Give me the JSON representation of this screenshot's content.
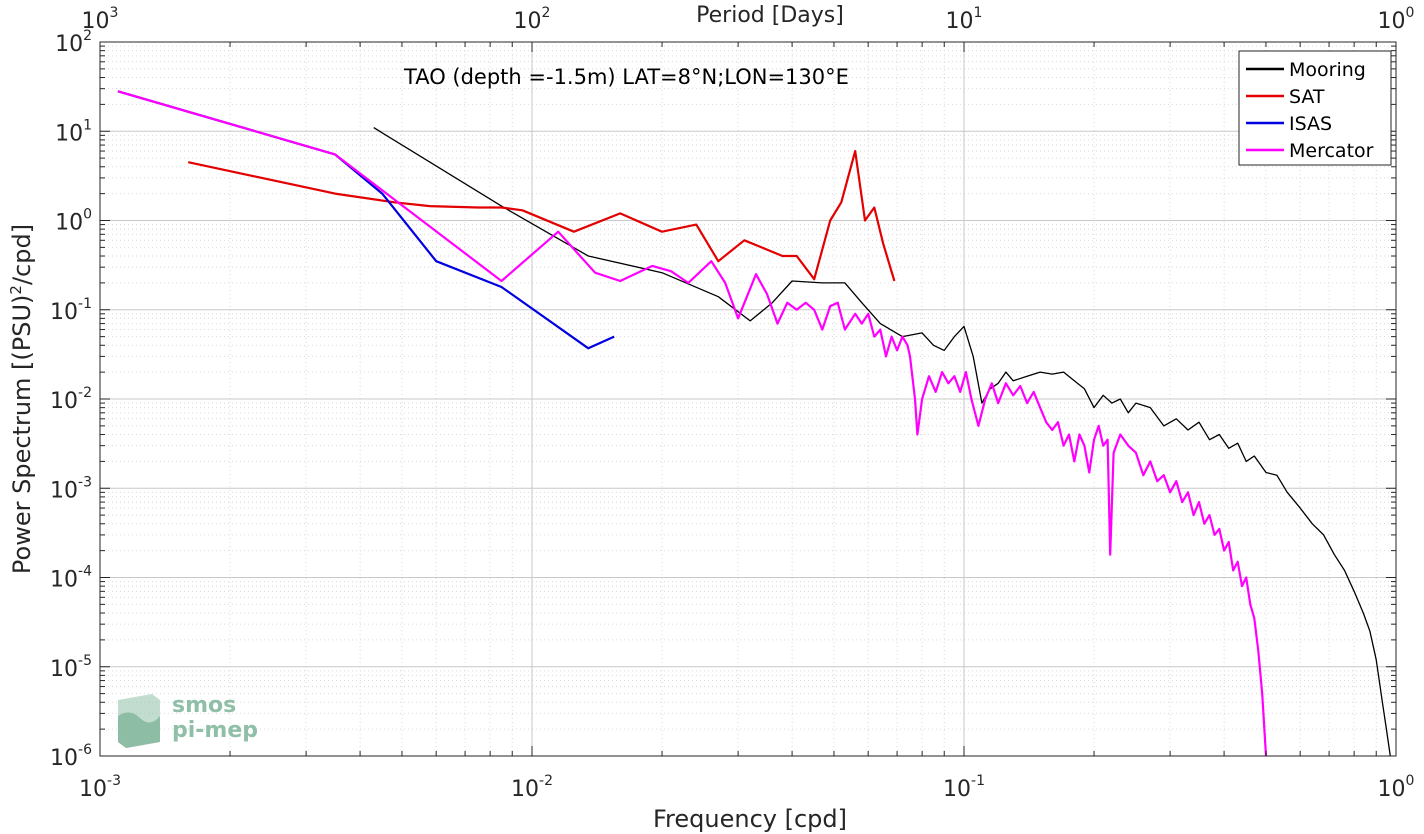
{
  "chart_data": {
    "type": "line",
    "title": "TAO (depth =-1.5m) LAT=8°N;LON=130°E",
    "xlabel": "Frequency [cpd]",
    "ylabel": "Power Spectrum [(PSU)",
    "ylabel_sup": "2",
    "ylabel_end": "/cpd]",
    "x2label": "Period [Days]",
    "xscale": "log",
    "yscale": "log",
    "xlim": [
      0.001,
      1
    ],
    "ylim": [
      1e-06,
      100
    ],
    "x2lim": [
      1000,
      1
    ],
    "grid": true,
    "minor_grid": true,
    "legend_position": "top-right",
    "x_ticks": [
      {
        "base": "10",
        "exp": "-3",
        "v": 0.001
      },
      {
        "base": "10",
        "exp": "-2",
        "v": 0.01
      },
      {
        "base": "10",
        "exp": "-1",
        "v": 0.1
      },
      {
        "base": "10",
        "exp": "0",
        "v": 1
      }
    ],
    "x2_ticks": [
      {
        "base": "10",
        "exp": "3",
        "v": 1000
      },
      {
        "base": "10",
        "exp": "2",
        "v": 100
      },
      {
        "base": "10",
        "exp": "1",
        "v": 10
      },
      {
        "base": "10",
        "exp": "0",
        "v": 1
      }
    ],
    "y_ticks": [
      {
        "base": "10",
        "exp": "2",
        "v": 100
      },
      {
        "base": "10",
        "exp": "1",
        "v": 10
      },
      {
        "base": "10",
        "exp": "0",
        "v": 1
      },
      {
        "base": "10",
        "exp": "-1",
        "v": 0.1
      },
      {
        "base": "10",
        "exp": "-2",
        "v": 0.01
      },
      {
        "base": "10",
        "exp": "-3",
        "v": 0.001
      },
      {
        "base": "10",
        "exp": "-4",
        "v": 0.0001
      },
      {
        "base": "10",
        "exp": "-5",
        "v": 1e-05
      },
      {
        "base": "10",
        "exp": "-6",
        "v": 1e-06
      }
    ],
    "series": [
      {
        "name": "Mooring",
        "color": "#000000",
        "points": [
          [
            0.0043,
            11
          ],
          [
            0.0085,
            1.45
          ],
          [
            0.0135,
            0.4
          ],
          [
            0.02,
            0.26
          ],
          [
            0.027,
            0.14
          ],
          [
            0.032,
            0.075
          ],
          [
            0.036,
            0.12
          ],
          [
            0.04,
            0.21
          ],
          [
            0.047,
            0.2
          ],
          [
            0.053,
            0.2
          ],
          [
            0.058,
            0.12
          ],
          [
            0.064,
            0.07
          ],
          [
            0.072,
            0.05
          ],
          [
            0.08,
            0.055
          ],
          [
            0.085,
            0.04
          ],
          [
            0.09,
            0.035
          ],
          [
            0.095,
            0.05
          ],
          [
            0.1,
            0.065
          ],
          [
            0.105,
            0.03
          ],
          [
            0.11,
            0.009
          ],
          [
            0.115,
            0.013
          ],
          [
            0.12,
            0.015
          ],
          [
            0.125,
            0.02
          ],
          [
            0.13,
            0.016
          ],
          [
            0.14,
            0.018
          ],
          [
            0.15,
            0.02
          ],
          [
            0.16,
            0.019
          ],
          [
            0.17,
            0.02
          ],
          [
            0.18,
            0.016
          ],
          [
            0.19,
            0.013
          ],
          [
            0.2,
            0.008
          ],
          [
            0.21,
            0.011
          ],
          [
            0.22,
            0.009
          ],
          [
            0.23,
            0.01
          ],
          [
            0.24,
            0.007
          ],
          [
            0.25,
            0.009
          ],
          [
            0.27,
            0.008
          ],
          [
            0.29,
            0.005
          ],
          [
            0.31,
            0.006
          ],
          [
            0.33,
            0.0045
          ],
          [
            0.35,
            0.0055
          ],
          [
            0.37,
            0.0035
          ],
          [
            0.39,
            0.004
          ],
          [
            0.41,
            0.0028
          ],
          [
            0.43,
            0.0032
          ],
          [
            0.45,
            0.002
          ],
          [
            0.47,
            0.0023
          ],
          [
            0.5,
            0.0015
          ],
          [
            0.53,
            0.0014
          ],
          [
            0.56,
            0.0009
          ],
          [
            0.6,
            0.0006
          ],
          [
            0.64,
            0.0004
          ],
          [
            0.68,
            0.0003
          ],
          [
            0.72,
            0.00018
          ],
          [
            0.76,
            0.00012
          ],
          [
            0.8,
            7e-05
          ],
          [
            0.84,
            4e-05
          ],
          [
            0.87,
            2.5e-05
          ],
          [
            0.9,
            1.2e-05
          ],
          [
            0.93,
            4e-06
          ],
          [
            0.95,
            2e-06
          ],
          [
            0.97,
            1e-06
          ]
        ]
      },
      {
        "name": "SAT",
        "color": "#e30000",
        "points": [
          [
            0.0016,
            4.5
          ],
          [
            0.0035,
            2.0
          ],
          [
            0.0048,
            1.6
          ],
          [
            0.0058,
            1.45
          ],
          [
            0.0075,
            1.4
          ],
          [
            0.0085,
            1.4
          ],
          [
            0.0095,
            1.3
          ],
          [
            0.0125,
            0.75
          ],
          [
            0.016,
            1.2
          ],
          [
            0.02,
            0.75
          ],
          [
            0.024,
            0.9
          ],
          [
            0.027,
            0.35
          ],
          [
            0.031,
            0.6
          ],
          [
            0.034,
            0.5
          ],
          [
            0.038,
            0.4
          ],
          [
            0.041,
            0.4
          ],
          [
            0.045,
            0.22
          ],
          [
            0.049,
            1.0
          ],
          [
            0.052,
            1.6
          ],
          [
            0.056,
            6.0
          ],
          [
            0.059,
            1.0
          ],
          [
            0.062,
            1.4
          ],
          [
            0.065,
            0.55
          ],
          [
            0.069,
            0.21
          ]
        ]
      },
      {
        "name": "ISAS",
        "color": "#0000e0",
        "points": [
          [
            0.0011,
            28
          ],
          [
            0.0035,
            5.5
          ],
          [
            0.0045,
            2.0
          ],
          [
            0.006,
            0.35
          ],
          [
            0.0085,
            0.18
          ],
          [
            0.0135,
            0.037
          ],
          [
            0.0155,
            0.05
          ]
        ]
      },
      {
        "name": "Mercator",
        "color": "#ff00ff",
        "points": [
          [
            0.0011,
            28
          ],
          [
            0.0035,
            5.5
          ],
          [
            0.0085,
            0.21
          ],
          [
            0.0115,
            0.75
          ],
          [
            0.014,
            0.26
          ],
          [
            0.016,
            0.21
          ],
          [
            0.019,
            0.31
          ],
          [
            0.021,
            0.27
          ],
          [
            0.023,
            0.2
          ],
          [
            0.026,
            0.35
          ],
          [
            0.028,
            0.2
          ],
          [
            0.03,
            0.08
          ],
          [
            0.033,
            0.25
          ],
          [
            0.035,
            0.15
          ],
          [
            0.037,
            0.07
          ],
          [
            0.039,
            0.12
          ],
          [
            0.041,
            0.1
          ],
          [
            0.043,
            0.12
          ],
          [
            0.045,
            0.1
          ],
          [
            0.047,
            0.06
          ],
          [
            0.049,
            0.11
          ],
          [
            0.051,
            0.12
          ],
          [
            0.053,
            0.06
          ],
          [
            0.056,
            0.09
          ],
          [
            0.058,
            0.07
          ],
          [
            0.06,
            0.09
          ],
          [
            0.062,
            0.05
          ],
          [
            0.064,
            0.06
          ],
          [
            0.066,
            0.03
          ],
          [
            0.068,
            0.05
          ],
          [
            0.07,
            0.035
          ],
          [
            0.072,
            0.05
          ],
          [
            0.074,
            0.04
          ],
          [
            0.075,
            0.03
          ],
          [
            0.077,
            0.01
          ],
          [
            0.078,
            0.004
          ],
          [
            0.08,
            0.01
          ],
          [
            0.083,
            0.018
          ],
          [
            0.086,
            0.012
          ],
          [
            0.089,
            0.02
          ],
          [
            0.092,
            0.015
          ],
          [
            0.095,
            0.018
          ],
          [
            0.098,
            0.012
          ],
          [
            0.101,
            0.02
          ],
          [
            0.104,
            0.01
          ],
          [
            0.108,
            0.005
          ],
          [
            0.112,
            0.01
          ],
          [
            0.116,
            0.015
          ],
          [
            0.12,
            0.009
          ],
          [
            0.125,
            0.015
          ],
          [
            0.13,
            0.011
          ],
          [
            0.135,
            0.014
          ],
          [
            0.14,
            0.009
          ],
          [
            0.145,
            0.012
          ],
          [
            0.15,
            0.008
          ],
          [
            0.155,
            0.0055
          ],
          [
            0.16,
            0.0045
          ],
          [
            0.165,
            0.0055
          ],
          [
            0.17,
            0.003
          ],
          [
            0.175,
            0.004
          ],
          [
            0.18,
            0.002
          ],
          [
            0.185,
            0.004
          ],
          [
            0.19,
            0.003
          ],
          [
            0.195,
            0.0015
          ],
          [
            0.2,
            0.0035
          ],
          [
            0.205,
            0.005
          ],
          [
            0.21,
            0.003
          ],
          [
            0.215,
            0.0035
          ],
          [
            0.218,
            0.00018
          ],
          [
            0.222,
            0.0025
          ],
          [
            0.23,
            0.004
          ],
          [
            0.24,
            0.003
          ],
          [
            0.25,
            0.0025
          ],
          [
            0.26,
            0.0014
          ],
          [
            0.27,
            0.002
          ],
          [
            0.28,
            0.0012
          ],
          [
            0.29,
            0.0014
          ],
          [
            0.3,
            0.0009
          ],
          [
            0.31,
            0.0012
          ],
          [
            0.32,
            0.0007
          ],
          [
            0.33,
            0.0009
          ],
          [
            0.34,
            0.0005
          ],
          [
            0.35,
            0.0007
          ],
          [
            0.36,
            0.0004
          ],
          [
            0.37,
            0.0005
          ],
          [
            0.38,
            0.0003
          ],
          [
            0.39,
            0.00035
          ],
          [
            0.4,
            0.0002
          ],
          [
            0.41,
            0.00025
          ],
          [
            0.42,
            0.00012
          ],
          [
            0.43,
            0.00015
          ],
          [
            0.44,
            8e-05
          ],
          [
            0.45,
            0.0001
          ],
          [
            0.46,
            5e-05
          ],
          [
            0.47,
            3.5e-05
          ],
          [
            0.48,
            1.5e-05
          ],
          [
            0.49,
            5e-06
          ],
          [
            0.5,
            1e-06
          ]
        ]
      }
    ]
  },
  "logo": {
    "line1": "smos",
    "line2": "pi-mep"
  }
}
